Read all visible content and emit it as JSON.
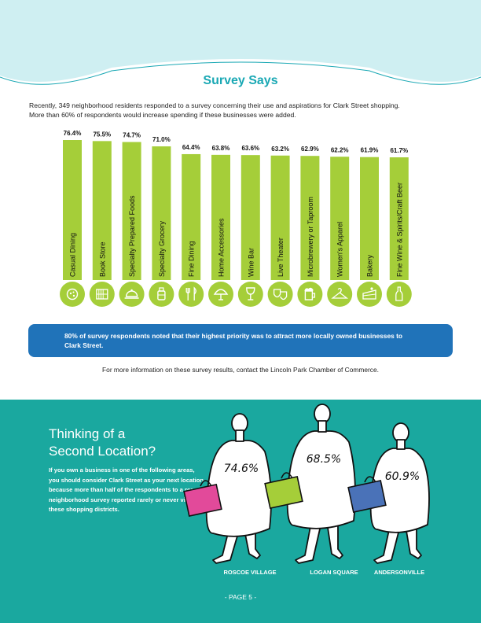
{
  "title": "Survey Says",
  "intro": {
    "line1": "Recently, 349 neighborhood residents responded to a survey concerning their use and aspirations for Clark Street shopping.",
    "line2": "More than 60% of respondents would increase spending if these businesses were added."
  },
  "colors": {
    "bar_green": "#a5ce39",
    "teal": "#1aa89f",
    "title_teal": "#1aa8b4",
    "callout_blue": "#2073b9",
    "bag_pink": "#e24a9a",
    "bag_green": "#a5ce39",
    "bag_blue": "#4a72b8"
  },
  "chart_data": {
    "type": "bar",
    "categories": [
      "Casual Dining",
      "Book Store",
      "Specialty Prepared Foods",
      "Specialty Grocery",
      "Fine Dining",
      "Home Accessories",
      "Wine Bar",
      "Live Theater",
      "Microbrewery or Taproom",
      "Women's Apparel",
      "Bakery",
      "Fine Wine & Spirits/Craft Beer"
    ],
    "values": [
      76.4,
      75.5,
      74.7,
      71.0,
      64.4,
      63.8,
      63.6,
      63.2,
      62.9,
      62.2,
      61.9,
      61.7
    ],
    "value_labels": [
      "76.4%",
      "75.5%",
      "74.7%",
      "71.0%",
      "64.4%",
      "63.8%",
      "63.6%",
      "63.2%",
      "62.9%",
      "62.2%",
      "61.9%",
      "61.7%"
    ],
    "icons": [
      "pizza-icon",
      "bookshelf-icon",
      "cloche-icon",
      "jar-icon",
      "fork-knife-icon",
      "lamp-icon",
      "wine-glass-icon",
      "theater-masks-icon",
      "beer-mug-icon",
      "hanger-icon",
      "cake-icon",
      "wine-bottle-icon"
    ],
    "title": "",
    "xlabel": "",
    "ylabel": ""
  },
  "callout": "80% of survey respondents noted that their highest priority was to attract more locally owned businesses to Clark Street.",
  "contact": "For more information on these survey results, contact the Lincoln Park Chamber of Commerce.",
  "second_location": {
    "title_line1": "Thinking of a",
    "title_line2": "Second Location?",
    "body": "If you own a business in one of the following areas, you should consider Clark Street as your next location because more than half of the respondents to a recent neighborhood survey reported rarely or never visiting these shopping districts.",
    "districts": [
      {
        "name": "ROSCOE VILLAGE",
        "value": 74.6,
        "label": "74.6%"
      },
      {
        "name": "LOGAN SQUARE",
        "value": 68.5,
        "label": "68.5%"
      },
      {
        "name": "ANDERSONVILLE",
        "value": 60.9,
        "label": "60.9%"
      }
    ]
  },
  "page": "- PAGE 5 -"
}
